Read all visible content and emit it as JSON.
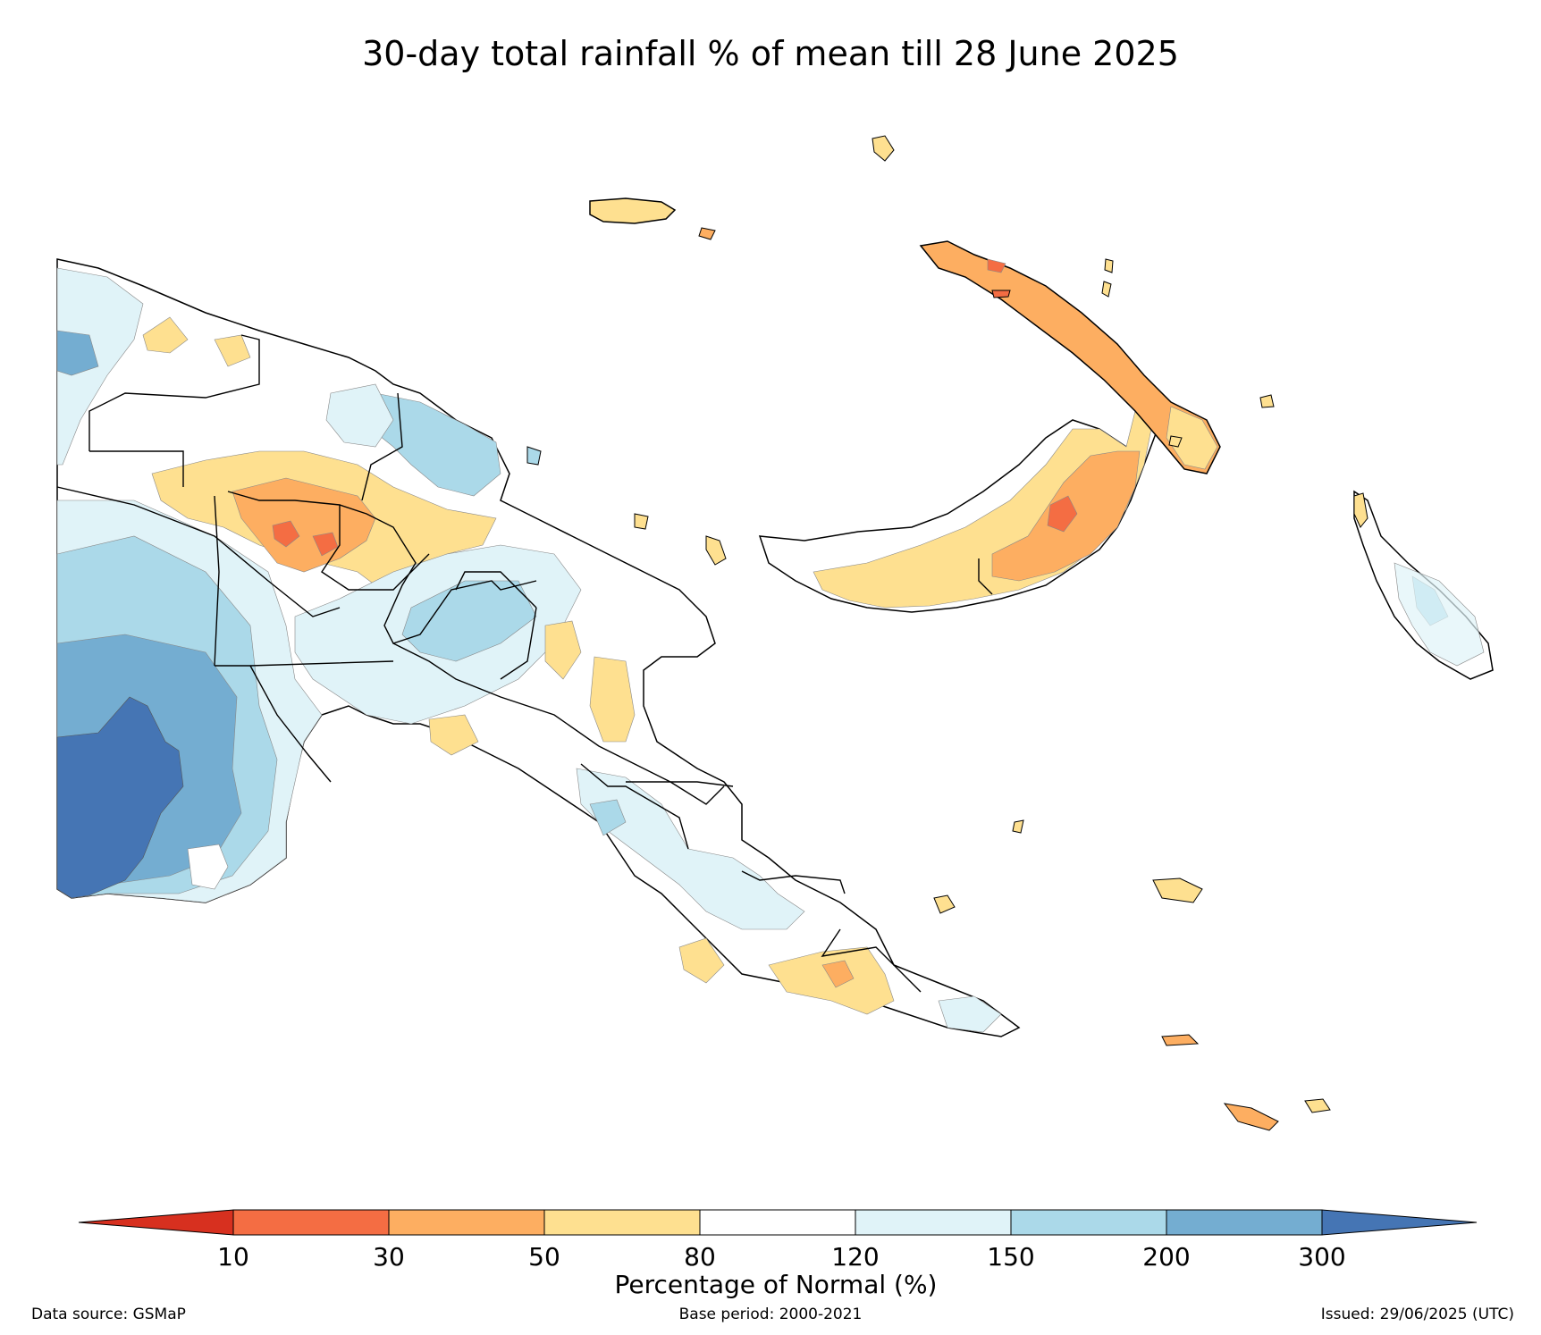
{
  "title": "30-day total rainfall % of mean till 28 June 2025",
  "colorbar": {
    "label": "Percentage of Normal (%)",
    "ticks": [
      "10",
      "30",
      "50",
      "80",
      "120",
      "150",
      "200",
      "300"
    ],
    "colors": [
      "#d7301f",
      "#f46d43",
      "#fdae61",
      "#fee090",
      "#ffffff",
      "#e0f3f8",
      "#abd9e9",
      "#74add1",
      "#4575b4"
    ],
    "extend": "both"
  },
  "legend_classes": [
    {
      "range": "<10",
      "color": "#d7301f"
    },
    {
      "range": "10-30",
      "color": "#f46d43"
    },
    {
      "range": "30-50",
      "color": "#fdae61"
    },
    {
      "range": "50-80",
      "color": "#fee090"
    },
    {
      "range": "80-120",
      "color": "#ffffff"
    },
    {
      "range": "120-150",
      "color": "#e0f3f8"
    },
    {
      "range": "150-200",
      "color": "#abd9e9"
    },
    {
      "range": "200-300",
      "color": "#74add1"
    },
    {
      "range": ">300",
      "color": "#4575b4"
    }
  ],
  "footer": {
    "source": "Data source: GSMaP",
    "base_period": "Base period: 2000-2021",
    "issued": "Issued: 29/06/2025 (UTC)"
  }
}
